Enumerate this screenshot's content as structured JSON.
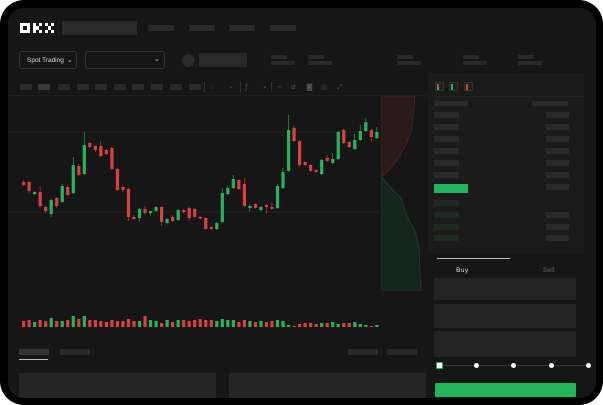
{
  "header": {
    "logo": "OKX",
    "market_selector": "Spot Trading",
    "market_selector_icon": "chevron-down-icon",
    "pair_selector_icon": "chevron-down-icon"
  },
  "toolbar": {
    "icons": [
      "candle-type-icon",
      "chevron-down-icon",
      "indicator-icon",
      "chevron-down-icon",
      "line-tool-icon",
      "ruler-icon",
      "camera-icon",
      "settings-icon",
      "fullscreen-icon"
    ]
  },
  "order_book": {
    "view_icons": [
      "both-sides-icon",
      "bids-only-icon",
      "asks-only-icon"
    ]
  },
  "trade_panel": {
    "tabs": [
      "Buy",
      "Sell"
    ],
    "active_tab": "Buy",
    "slider_level": 0,
    "slider_stops": [
      0,
      25,
      50,
      75,
      100
    ]
  },
  "colors": {
    "up": "#26b35e",
    "down": "#d8413f",
    "accent": "#22b45a"
  },
  "chart_data": {
    "type": "candlestick",
    "title": "",
    "candles": [
      {
        "o": 58,
        "h": 60,
        "l": 54,
        "c": 55
      },
      {
        "o": 58,
        "h": 59,
        "l": 47,
        "c": 49
      },
      {
        "o": 46,
        "h": 49,
        "l": 45,
        "c": 48
      },
      {
        "o": 48,
        "h": 54,
        "l": 32,
        "c": 34
      },
      {
        "o": 33,
        "h": 34,
        "l": 27,
        "c": 29
      },
      {
        "o": 26,
        "h": 41,
        "l": 23,
        "c": 40
      },
      {
        "o": 42,
        "h": 43,
        "l": 32,
        "c": 34
      },
      {
        "o": 38,
        "h": 56,
        "l": 37,
        "c": 54
      },
      {
        "o": 53,
        "h": 55,
        "l": 44,
        "c": 45
      },
      {
        "o": 47,
        "h": 83,
        "l": 46,
        "c": 75
      },
      {
        "o": 74,
        "h": 76,
        "l": 64,
        "c": 65
      },
      {
        "o": 66,
        "h": 108,
        "l": 65,
        "c": 95
      },
      {
        "o": 97,
        "h": 98,
        "l": 92,
        "c": 93
      },
      {
        "o": 94,
        "h": 95,
        "l": 88,
        "c": 90
      },
      {
        "o": 94,
        "h": 99,
        "l": 83,
        "c": 84
      },
      {
        "o": 90,
        "h": 91,
        "l": 85,
        "c": 86
      },
      {
        "o": 92,
        "h": 93,
        "l": 70,
        "c": 71
      },
      {
        "o": 71,
        "h": 72,
        "l": 49,
        "c": 50
      },
      {
        "o": 53,
        "h": 55,
        "l": 48,
        "c": 50
      },
      {
        "o": 51,
        "h": 52,
        "l": 19,
        "c": 23
      },
      {
        "o": 23,
        "h": 25,
        "l": 20,
        "c": 21
      },
      {
        "o": 22,
        "h": 32,
        "l": 18,
        "c": 31
      },
      {
        "o": 31,
        "h": 34,
        "l": 25,
        "c": 27
      },
      {
        "o": 27,
        "h": 29,
        "l": 24,
        "c": 29
      },
      {
        "o": 29,
        "h": 34,
        "l": 28,
        "c": 33
      },
      {
        "o": 33,
        "h": 34,
        "l": 14,
        "c": 18
      },
      {
        "o": 17,
        "h": 22,
        "l": 16,
        "c": 21
      },
      {
        "o": 23,
        "h": 25,
        "l": 18,
        "c": 19
      },
      {
        "o": 20,
        "h": 31,
        "l": 19,
        "c": 30
      },
      {
        "o": 30,
        "h": 31,
        "l": 27,
        "c": 28
      },
      {
        "o": 32,
        "h": 33,
        "l": 19,
        "c": 22
      },
      {
        "o": 31,
        "h": 32,
        "l": 22,
        "c": 23
      },
      {
        "o": 23,
        "h": 24,
        "l": 21,
        "c": 22
      },
      {
        "o": 22,
        "h": 23,
        "l": 10,
        "c": 11
      },
      {
        "o": 13,
        "h": 14,
        "l": 10,
        "c": 11
      },
      {
        "o": 11,
        "h": 18,
        "l": 10,
        "c": 17
      },
      {
        "o": 18,
        "h": 52,
        "l": 17,
        "c": 47
      },
      {
        "o": 46,
        "h": 54,
        "l": 45,
        "c": 52
      },
      {
        "o": 52,
        "h": 65,
        "l": 51,
        "c": 61
      },
      {
        "o": 60,
        "h": 61,
        "l": 50,
        "c": 51
      },
      {
        "o": 56,
        "h": 62,
        "l": 33,
        "c": 34
      },
      {
        "o": 32,
        "h": 36,
        "l": 28,
        "c": 34
      },
      {
        "o": 36,
        "h": 37,
        "l": 31,
        "c": 32
      },
      {
        "o": 30,
        "h": 34,
        "l": 29,
        "c": 33
      },
      {
        "o": 35,
        "h": 36,
        "l": 26,
        "c": 33
      },
      {
        "o": 33,
        "h": 38,
        "l": 30,
        "c": 31
      },
      {
        "o": 32,
        "h": 56,
        "l": 31,
        "c": 54
      },
      {
        "o": 52,
        "h": 72,
        "l": 51,
        "c": 68
      },
      {
        "o": 69,
        "h": 125,
        "l": 68,
        "c": 110
      },
      {
        "o": 112,
        "h": 114,
        "l": 98,
        "c": 99
      },
      {
        "o": 99,
        "h": 100,
        "l": 73,
        "c": 75
      },
      {
        "o": 78,
        "h": 79,
        "l": 74,
        "c": 75
      },
      {
        "o": 75,
        "h": 76,
        "l": 68,
        "c": 69
      },
      {
        "o": 70,
        "h": 71,
        "l": 67,
        "c": 68
      },
      {
        "o": 66,
        "h": 81,
        "l": 65,
        "c": 80
      },
      {
        "o": 82,
        "h": 85,
        "l": 78,
        "c": 79
      },
      {
        "o": 77,
        "h": 87,
        "l": 76,
        "c": 81
      },
      {
        "o": 81,
        "h": 109,
        "l": 80,
        "c": 108
      },
      {
        "o": 110,
        "h": 111,
        "l": 96,
        "c": 97
      },
      {
        "o": 98,
        "h": 99,
        "l": 92,
        "c": 93
      },
      {
        "o": 91,
        "h": 106,
        "l": 90,
        "c": 100
      },
      {
        "o": 100,
        "h": 115,
        "l": 99,
        "c": 109
      },
      {
        "o": 109,
        "h": 122,
        "l": 108,
        "c": 118
      },
      {
        "o": 110,
        "h": 111,
        "l": 99,
        "c": 103
      },
      {
        "o": 102,
        "h": 113,
        "l": 101,
        "c": 108
      }
    ],
    "volume": [
      6,
      7,
      5,
      7,
      6,
      9,
      6,
      6,
      7,
      11,
      8,
      11,
      7,
      7,
      6,
      5,
      7,
      6,
      6,
      8,
      6,
      6,
      11,
      7,
      6,
      4,
      7,
      5,
      7,
      7,
      6,
      7,
      8,
      7,
      7,
      6,
      8,
      7,
      7,
      5,
      7,
      6,
      5,
      6,
      5,
      6,
      7,
      6,
      2,
      1,
      3,
      4,
      4,
      3,
      4,
      4,
      5,
      3,
      4,
      4,
      5,
      3,
      2,
      1,
      2
    ]
  }
}
